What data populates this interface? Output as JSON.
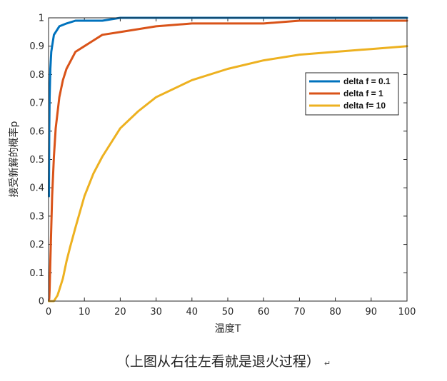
{
  "chart_data": {
    "type": "line",
    "xlabel": "温度T",
    "ylabel": "接受新解的概率p",
    "xlim": [
      0,
      100
    ],
    "ylim": [
      0,
      1
    ],
    "xticks": [
      0,
      10,
      20,
      30,
      40,
      50,
      60,
      70,
      80,
      90,
      100
    ],
    "yticks": [
      0,
      0.1,
      0.2,
      0.3,
      0.4,
      0.5,
      0.6,
      0.7,
      0.8,
      0.9,
      1
    ],
    "xtick_labels": [
      "0",
      "10",
      "20",
      "30",
      "40",
      "50",
      "60",
      "70",
      "80",
      "90",
      "100"
    ],
    "ytick_labels": [
      "0",
      "0.1",
      "0.2",
      "0.3",
      "0.4",
      "0.5",
      "0.6",
      "0.7",
      "0.8",
      "0.9",
      "1"
    ],
    "legend_position": "top-right",
    "grid": false,
    "series": [
      {
        "name": "delta f = 0.1",
        "color": "#0072BD",
        "x": [
          0.1,
          0.15,
          0.2,
          0.3,
          0.5,
          0.75,
          1,
          1.5,
          2,
          3,
          5,
          7.5,
          10,
          15,
          20,
          30,
          50,
          75,
          100
        ],
        "y": [
          0.37,
          0.51,
          0.61,
          0.72,
          0.82,
          0.88,
          0.9,
          0.94,
          0.95,
          0.97,
          0.98,
          0.99,
          0.99,
          0.99,
          1.0,
          1.0,
          1.0,
          1.0,
          1.0
        ]
      },
      {
        "name": "delta f = 1",
        "color": "#D95319",
        "x": [
          0.1,
          0.2,
          0.3,
          0.5,
          0.75,
          1,
          1.5,
          2,
          3,
          4,
          5,
          7.5,
          10,
          15,
          20,
          30,
          40,
          50,
          60,
          70,
          80,
          90,
          100
        ],
        "y": [
          0.0,
          0.01,
          0.04,
          0.14,
          0.26,
          0.37,
          0.51,
          0.61,
          0.72,
          0.78,
          0.82,
          0.88,
          0.9,
          0.94,
          0.95,
          0.97,
          0.98,
          0.98,
          0.98,
          0.99,
          0.99,
          0.99,
          0.99
        ]
      },
      {
        "name": "delta f= 10",
        "color": "#EDB120",
        "x": [
          0.1,
          1,
          1.5,
          2,
          2.5,
          3,
          4,
          5,
          6,
          7.5,
          10,
          12.5,
          15,
          20,
          25,
          30,
          40,
          50,
          60,
          70,
          80,
          90,
          100
        ],
        "y": [
          0.0,
          0.0,
          0.0,
          0.01,
          0.02,
          0.04,
          0.08,
          0.14,
          0.19,
          0.26,
          0.37,
          0.45,
          0.51,
          0.61,
          0.67,
          0.72,
          0.78,
          0.82,
          0.85,
          0.87,
          0.88,
          0.89,
          0.9
        ]
      }
    ]
  },
  "caption": "（上图从右往左看就是退火过程）",
  "caption_mark": "↵"
}
